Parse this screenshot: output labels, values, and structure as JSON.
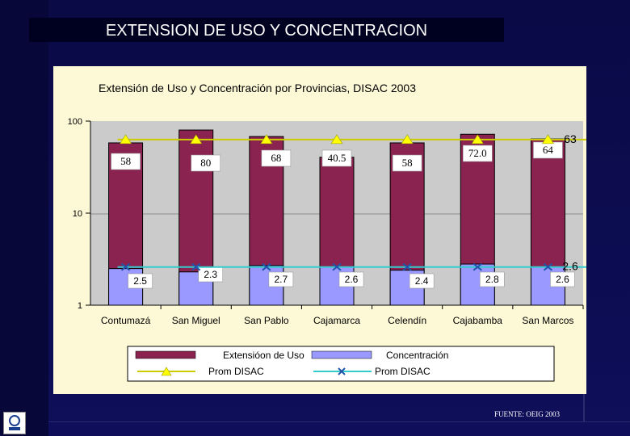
{
  "slide": {
    "title": "EXTENSION DE USO Y CONCENTRACION",
    "source": "FUENTE: OEIG 2003"
  },
  "colors": {
    "bar_uso": "#8b2350",
    "bar_conc": "#9999ff",
    "line_uso": "#cccc00",
    "marker_uso": "#ffff00",
    "line_conc": "#33cccc",
    "plot_bg": "#c0c0c0",
    "panel_bg": "#fdf8d6"
  },
  "chart_data": {
    "type": "bar",
    "scale": "log",
    "title": "Extensión de Uso y Concentración por Provincias, DISAC 2003",
    "ylim": [
      1,
      100
    ],
    "y_ticks": [
      {
        "value": 1,
        "label": "1"
      },
      {
        "value": 10,
        "label": "10"
      },
      {
        "value": 100,
        "label": "100"
      }
    ],
    "categories": [
      "Contumazá",
      "San Miguel",
      "San Pablo",
      "Cajamarca",
      "Celendín",
      "Cajabamba",
      "San Marcos"
    ],
    "series": [
      {
        "name": "Extensióon de Uso",
        "kind": "bar",
        "values": [
          58,
          80,
          68,
          40.5,
          58,
          72.0,
          64
        ],
        "labels": [
          "58",
          "80",
          "68",
          "40.5",
          "58",
          "72.0",
          "64"
        ]
      },
      {
        "name": "Concentración",
        "kind": "bar",
        "values": [
          2.5,
          2.3,
          2.7,
          2.6,
          2.4,
          2.8,
          2.6
        ],
        "labels": [
          "2.5",
          "2.3",
          "2.7",
          "2.6",
          "2.4",
          "2.8",
          "2.6"
        ]
      },
      {
        "name": "Prom DISAC",
        "kind": "line",
        "ref": "uso",
        "value": 63,
        "label": "63"
      },
      {
        "name": "Prom DISAC",
        "kind": "line",
        "ref": "conc",
        "value": 2.6,
        "label": "2.6"
      }
    ],
    "legend": {
      "position": "bottom",
      "items": [
        "Extensióon de Uso",
        "Concentración",
        "Prom DISAC",
        "Prom DISAC"
      ]
    }
  }
}
